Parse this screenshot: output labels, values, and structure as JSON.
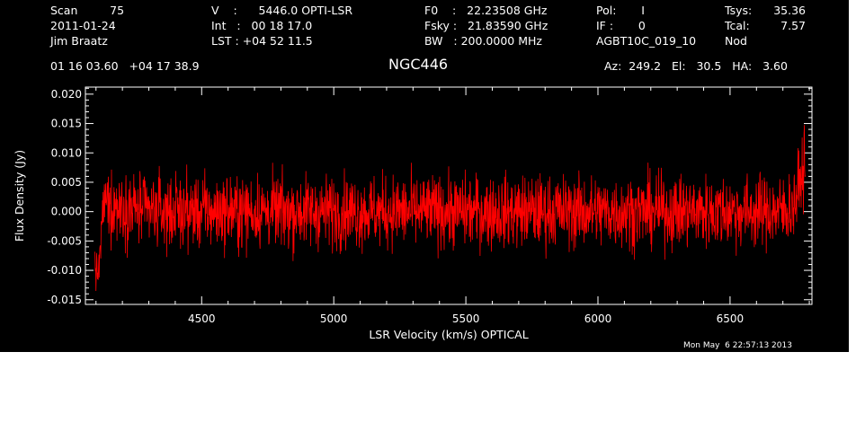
{
  "header": {
    "col1": [
      "Scan         75",
      "2011-01-24",
      "Jim Braatz"
    ],
    "col2": [
      "V    :      5446.0 OPTI-LSR",
      "Int   :   00 18 17.0",
      "LST : +04 52 11.5"
    ],
    "col3": [
      "F0    :   22.23508 GHz",
      "Fsky :   21.83590 GHz",
      "BW   : 200.0000 MHz"
    ],
    "col4": [
      "Pol:       I",
      "IF :       0",
      "AGBT10C_019_10"
    ],
    "col5_labels": [
      "Tsys:",
      "Tcal:",
      "Nod"
    ],
    "col5_values": [
      "35.36",
      "7.57",
      ""
    ],
    "coords": "01 16 03.60   +04 17 38.9",
    "source": "NGC446",
    "azelha": "Az:  249.2   El:   30.5   HA:   3.60",
    "timestamp": "Mon May  6 22:57:13 2013"
  },
  "colors": {
    "background": "#000000",
    "axes": "#ffffff",
    "trace": "#ff0000"
  },
  "chart_data": {
    "type": "line",
    "title": "NGC446",
    "xlabel": "LSR Velocity (km/s) OPTICAL",
    "ylabel": "Flux Density (Jy)",
    "xlim": [
      4060,
      6810
    ],
    "ylim": [
      -0.0158,
      0.0212
    ],
    "xticks": [
      4500,
      5000,
      5500,
      6000,
      6500
    ],
    "xtick_labels": [
      "4500",
      "5000",
      "5500",
      "6000",
      "6500"
    ],
    "yticks": [
      -0.015,
      -0.01,
      -0.005,
      0.0,
      0.005,
      0.01,
      0.015,
      0.02
    ],
    "ytick_labels": [
      "-0.015",
      "-0.010",
      "-0.005",
      "0.000",
      "0.005",
      "0.010",
      "0.015",
      "0.020"
    ],
    "grid": false,
    "series": [
      {
        "x": [
          4095,
          4103,
          4110,
          4118,
          4125,
          4135,
          4150,
          4200,
          4300,
          4400,
          4500,
          4600,
          4700,
          4800,
          4900,
          5000,
          5100,
          5200,
          5300,
          5400,
          5500,
          5600,
          5700,
          5800,
          5900,
          6000,
          6100,
          6200,
          6300,
          6400,
          6500,
          6600,
          6700,
          6740,
          6760,
          6775,
          6785
        ],
        "values": [
          -0.008,
          -0.011,
          -0.01,
          -0.006,
          0.0,
          0.002,
          0.001,
          0.001,
          0.0,
          0.0,
          0.0,
          0.0,
          0.0,
          0.0,
          0.0,
          0.0,
          0.0,
          0.0,
          0.0,
          0.0,
          0.0,
          0.0,
          0.0,
          0.0,
          0.0,
          0.0,
          0.0,
          0.0,
          0.0,
          0.0,
          0.0,
          0.0,
          0.0,
          0.001,
          0.004,
          0.007,
          0.009
        ]
      }
    ]
  }
}
